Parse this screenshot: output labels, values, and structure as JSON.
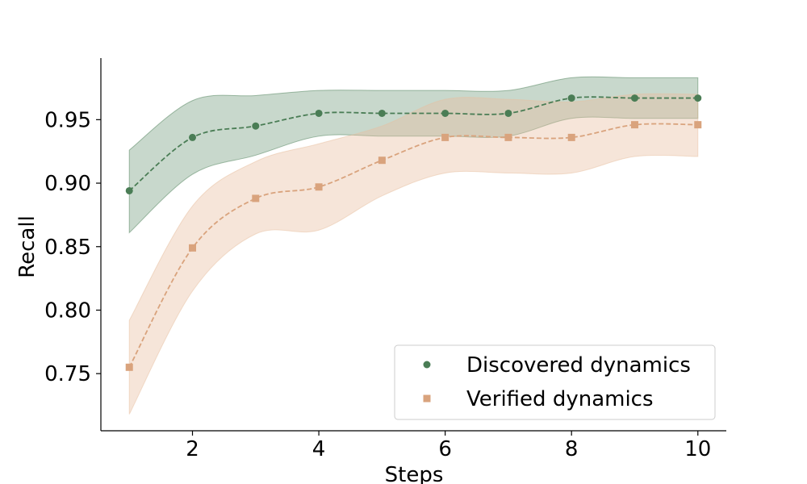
{
  "chart_data": {
    "type": "line",
    "title": "",
    "xlabel": "Steps",
    "ylabel": "Recall",
    "xlim": [
      0.55,
      10.45
    ],
    "ylim": [
      0.705,
      0.9985
    ],
    "x_ticks": [
      2,
      4,
      6,
      8,
      10
    ],
    "y_ticks": [
      0.75,
      0.8,
      0.85,
      0.9,
      0.95
    ],
    "grid": false,
    "legend_position": "lower-right",
    "x": [
      1,
      2,
      3,
      4,
      5,
      6,
      7,
      8,
      9,
      10
    ],
    "series": [
      {
        "name": "Discovered dynamics",
        "marker": "circle",
        "line_style": "dashed",
        "color": "#4a7d55",
        "band_color": "#4a7d55",
        "values": [
          0.894,
          0.936,
          0.945,
          0.955,
          0.955,
          0.955,
          0.955,
          0.967,
          0.967,
          0.967
        ],
        "band_upper": [
          0.926,
          0.965,
          0.969,
          0.973,
          0.973,
          0.973,
          0.973,
          0.983,
          0.983,
          0.983
        ],
        "band_lower": [
          0.861,
          0.907,
          0.922,
          0.937,
          0.937,
          0.937,
          0.937,
          0.951,
          0.951,
          0.951
        ]
      },
      {
        "name": "Verified dynamics",
        "marker": "square",
        "line_style": "dashed",
        "color": "#d9a37d",
        "band_color": "#e8bfa0",
        "values": [
          0.755,
          0.849,
          0.888,
          0.897,
          0.918,
          0.936,
          0.936,
          0.936,
          0.946,
          0.946
        ],
        "band_upper": [
          0.792,
          0.882,
          0.917,
          0.931,
          0.945,
          0.966,
          0.966,
          0.964,
          0.97,
          0.97
        ],
        "band_lower": [
          0.718,
          0.815,
          0.86,
          0.863,
          0.89,
          0.908,
          0.908,
          0.908,
          0.921,
          0.921
        ]
      }
    ]
  }
}
